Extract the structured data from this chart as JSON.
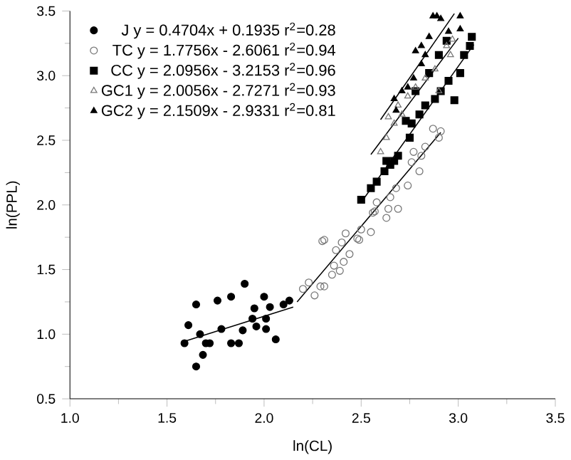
{
  "chart_data": {
    "type": "scatter",
    "xlabel": "ln(CL)",
    "ylabel": "ln(PPL)",
    "xlim": [
      1.0,
      3.5
    ],
    "ylim": [
      0.5,
      3.5
    ],
    "xticks": [
      {
        "value": 1.0,
        "label": "1.0"
      },
      {
        "value": 1.5,
        "label": "1.5"
      },
      {
        "value": 2.0,
        "label": "2.0"
      },
      {
        "value": 2.5,
        "label": "2.5"
      },
      {
        "value": 3.0,
        "label": "3.0"
      },
      {
        "value": 3.5,
        "label": "3.5"
      }
    ],
    "yticks": [
      {
        "value": 0.5,
        "label": "0.5"
      },
      {
        "value": 1.0,
        "label": "1.0"
      },
      {
        "value": 1.5,
        "label": "1.5"
      },
      {
        "value": 2.0,
        "label": "2.0"
      },
      {
        "value": 2.5,
        "label": "2.5"
      },
      {
        "value": 3.0,
        "label": "3.0"
      },
      {
        "value": 3.5,
        "label": "3.5"
      }
    ],
    "grid": false,
    "legend": "top left",
    "series": [
      {
        "name": "J y = 0.4704x + 0.1935 r$^{2}$=0.28",
        "color": "#000000",
        "marker": "circle",
        "x": [
          1.59,
          1.61,
          1.65,
          1.67,
          1.685,
          1.7,
          1.72,
          1.65,
          1.76,
          1.78,
          1.83,
          1.83,
          1.87,
          1.89,
          1.9,
          1.94,
          1.95,
          1.96,
          2.0,
          2.01,
          2.01,
          2.03,
          2.06,
          2.1,
          2.13
        ],
        "values": [
          0.93,
          1.07,
          1.23,
          1.0,
          0.84,
          0.93,
          0.93,
          0.75,
          1.26,
          1.04,
          1.29,
          0.93,
          0.93,
          1.03,
          1.39,
          1.12,
          1.2,
          1.06,
          1.29,
          1.04,
          1.12,
          1.21,
          0.96,
          1.23,
          1.26
        ]
      },
      {
        "name": "TC y = 1.7756x - 2.6061 r$^{2}$=0.94",
        "color": "#777777",
        "marker": "circle-open",
        "x": [
          2.3,
          2.26,
          2.23,
          2.2,
          2.29,
          2.31,
          2.35,
          2.36,
          2.39,
          2.37,
          2.4,
          2.42,
          2.44,
          2.41,
          2.48,
          2.5,
          2.55,
          2.57,
          2.63,
          2.64,
          2.69,
          2.31,
          2.49,
          2.56,
          2.58,
          2.65,
          2.68,
          2.74,
          2.8,
          2.76,
          2.81,
          2.83,
          2.87,
          2.91,
          2.77,
          2.9
        ],
        "values": [
          1.72,
          1.3,
          1.4,
          1.35,
          1.37,
          1.37,
          1.46,
          1.53,
          1.49,
          1.65,
          1.71,
          1.78,
          1.62,
          1.56,
          1.74,
          1.81,
          1.79,
          1.95,
          1.9,
          1.97,
          1.97,
          1.73,
          1.73,
          1.94,
          2.02,
          2.06,
          2.13,
          2.15,
          2.26,
          2.33,
          2.38,
          2.45,
          2.59,
          2.57,
          2.41,
          2.52
        ]
      },
      {
        "name": "CC y = 2.0956x - 3.2153 r$^{2}$=0.96",
        "color": "#000000",
        "marker": "square",
        "x": [
          2.5,
          2.55,
          2.58,
          2.62,
          2.63,
          2.65,
          2.69,
          2.75,
          2.76,
          2.8,
          2.83,
          2.88,
          2.91,
          2.95,
          3.01,
          3.03,
          3.07,
          3.06,
          2.98,
          2.73,
          2.78,
          2.85,
          2.9,
          2.94,
          2.67
        ],
        "values": [
          2.04,
          2.13,
          2.18,
          2.26,
          2.34,
          2.31,
          2.38,
          2.52,
          2.63,
          2.7,
          2.77,
          2.82,
          2.88,
          2.96,
          3.02,
          3.16,
          3.3,
          3.23,
          2.81,
          2.65,
          2.88,
          3.02,
          3.16,
          3.27,
          2.34
        ]
      },
      {
        "name": "GC1 y = 2.0056x - 2.7271 r$^{2}$=0.93",
        "color": "#777777",
        "marker": "triangle-open",
        "x": [
          2.6,
          2.63,
          2.64,
          2.69,
          2.74,
          2.78,
          2.83,
          2.88,
          2.94,
          2.97,
          2.96,
          2.9,
          2.71,
          2.67
        ],
        "values": [
          2.41,
          2.52,
          2.68,
          2.77,
          2.84,
          2.91,
          2.98,
          3.05,
          3.23,
          3.28,
          3.16,
          2.88,
          2.7,
          2.63
        ]
      },
      {
        "name": "GC2 y = 2.1509x - 2.9331 r$^{2}$=0.81",
        "color": "#000000",
        "marker": "triangle",
        "x": [
          2.67,
          2.68,
          2.74,
          2.77,
          2.78,
          2.81,
          2.83,
          2.85,
          2.87,
          2.89,
          2.91,
          2.95,
          3.01,
          3.01,
          2.81,
          2.71
        ],
        "values": [
          2.82,
          2.73,
          2.91,
          2.98,
          3.19,
          3.23,
          3.16,
          3.3,
          3.46,
          3.46,
          3.44,
          3.34,
          3.46,
          3.36,
          3.09,
          2.88
        ]
      },
      {
        "type": "line",
        "color": "#000000",
        "marker": "none",
        "x": [
          1.6,
          2.15
        ],
        "values": [
          0.95,
          1.21
        ]
      },
      {
        "type": "line",
        "color": "#000000",
        "marker": "none",
        "x": [
          2.17,
          2.91
        ],
        "values": [
          1.25,
          2.56
        ]
      },
      {
        "type": "line",
        "color": "#000000",
        "marker": "none",
        "x": [
          2.5,
          3.08
        ],
        "values": [
          2.02,
          3.24
        ]
      },
      {
        "type": "line",
        "color": "#000000",
        "marker": "none",
        "x": [
          2.55,
          3.0
        ],
        "values": [
          2.39,
          3.29
        ]
      },
      {
        "type": "line",
        "color": "#000000",
        "marker": "none",
        "x": [
          2.6,
          2.98
        ],
        "values": [
          2.66,
          3.48
        ]
      }
    ]
  }
}
